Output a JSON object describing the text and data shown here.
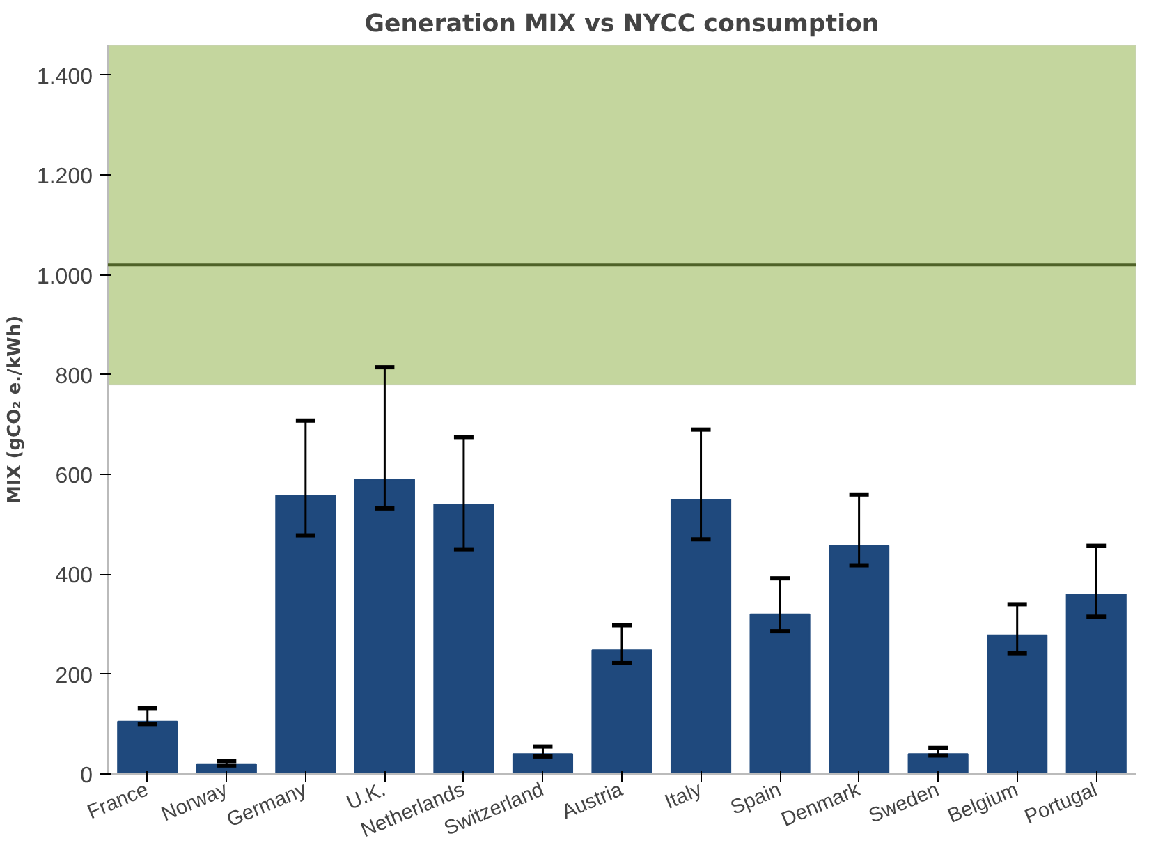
{
  "chart_data": {
    "type": "bar",
    "title": "Generation MIX vs NYCC consumption",
    "ylabel": "MIX (gCO₂ e./kWh)",
    "categories": [
      "France",
      "Norway",
      "Germany",
      "U.K.",
      "Netherlands",
      "Switzerland",
      "Austria",
      "Italy",
      "Spain",
      "Denmark",
      "Sweden",
      "Belgium",
      "Portugal"
    ],
    "values": [
      105,
      20,
      558,
      590,
      540,
      40,
      248,
      550,
      320,
      457,
      40,
      278,
      360
    ],
    "errors": [
      [
        100,
        132
      ],
      [
        17,
        26
      ],
      [
        478,
        708
      ],
      [
        532,
        815
      ],
      [
        450,
        675
      ],
      [
        35,
        55
      ],
      [
        222,
        298
      ],
      [
        470,
        690
      ],
      [
        286,
        392
      ],
      [
        418,
        560
      ],
      [
        37,
        52
      ],
      [
        242,
        340
      ],
      [
        315,
        457
      ]
    ],
    "color": "#1f497d",
    "ylim": [
      0,
      1460
    ],
    "yticks": [
      0,
      200,
      400,
      600,
      800,
      {
        "value": 1000,
        "label": "1.000"
      },
      {
        "value": 1200,
        "label": "1.200"
      },
      {
        "value": 1400,
        "label": "1.400"
      }
    ],
    "bands": [
      {
        "axis": "y",
        "from": 780,
        "to": 1460,
        "color": "#c4d69e"
      }
    ],
    "ref_lines": [
      {
        "axis": "y",
        "value": 1020,
        "color": "#4f6228"
      }
    ],
    "grid": false
  }
}
